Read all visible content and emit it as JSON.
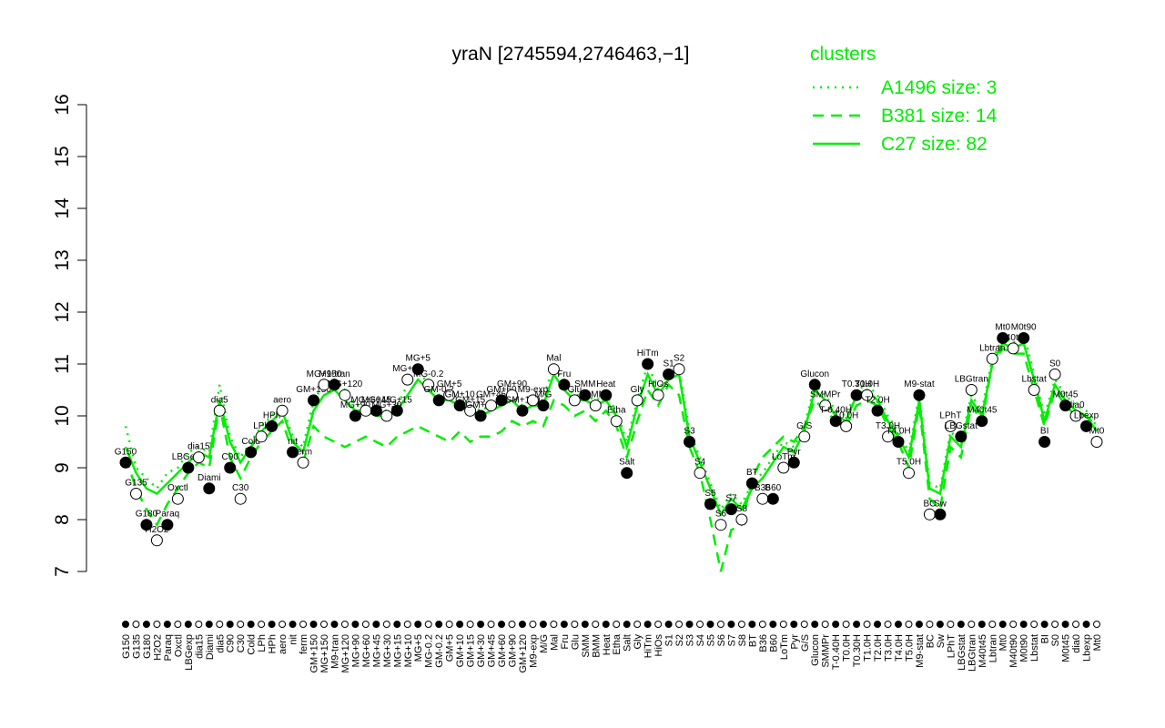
{
  "chart_data": {
    "type": "line",
    "title": "yraN [2745594,2746463,−1]",
    "legend_title": "clusters",
    "legend_position": "top-right",
    "ylim": [
      7,
      16
    ],
    "yticks": [
      7,
      8,
      9,
      10,
      11,
      12,
      13,
      14,
      15,
      16
    ],
    "categories": [
      "G150",
      "G135",
      "G180",
      "H2O2",
      "Paraq",
      "Oxctl",
      "LBGexp",
      "dia15",
      "Diami",
      "dia5",
      "C90",
      "C30",
      "Cold",
      "LPh",
      "HPh",
      "aero",
      "nit",
      "ferm",
      "GM+150",
      "MG+150",
      "M9-tran",
      "MG+120",
      "MG+90",
      "MG+60",
      "MG+45",
      "MG+30",
      "MG+15",
      "MG+10",
      "MG+5",
      "MG-0.2",
      "GM-0.2",
      "GM+5",
      "GM+10",
      "GM+15",
      "GM+30",
      "GM+45",
      "GM+60",
      "GM+90",
      "GM+120",
      "M9-exp",
      "M/G",
      "Mal",
      "Fru",
      "Glu",
      "SMM",
      "BMM",
      "Heat",
      "Etha",
      "Salt",
      "Gly",
      "HiTm",
      "HiOs",
      "S1",
      "S2",
      "S3",
      "S4",
      "S5",
      "S6",
      "S7",
      "S8",
      "BT",
      "B36",
      "B60",
      "LoTm",
      "Pyr",
      "G/S",
      "Glucon",
      "SMMPr",
      "T-0.40H",
      "T0.0H",
      "T0.30H",
      "T1.0H",
      "T2.0H",
      "T3.0H",
      "T4.0H",
      "T5.0H",
      "M9-stat",
      "BC",
      "Sw",
      "LPhT",
      "LBGstat",
      "LBGtran",
      "M40t45",
      "Lbtran",
      "Mt0",
      "M40t90",
      "M0t90",
      "Lbstat",
      "BI",
      "S0",
      "M0t45",
      "dia0",
      "Lbexp",
      "Mt0"
    ],
    "values": [
      9.1,
      8.5,
      7.9,
      7.6,
      7.9,
      8.4,
      9.0,
      9.2,
      8.6,
      10.1,
      9.0,
      8.4,
      9.3,
      9.6,
      9.8,
      10.1,
      9.3,
      9.1,
      10.3,
      10.6,
      10.6,
      10.4,
      10.0,
      10.1,
      10.1,
      10.0,
      10.1,
      10.7,
      10.9,
      10.6,
      10.3,
      10.4,
      10.2,
      10.1,
      10.0,
      10.2,
      10.3,
      10.4,
      10.1,
      10.3,
      10.2,
      10.9,
      10.6,
      10.3,
      10.4,
      10.2,
      10.4,
      9.9,
      8.9,
      10.3,
      11.0,
      10.4,
      10.8,
      10.9,
      9.5,
      8.9,
      8.3,
      7.9,
      8.2,
      8.0,
      8.7,
      8.4,
      8.4,
      9.0,
      9.1,
      9.6,
      10.6,
      10.2,
      9.9,
      9.8,
      10.4,
      10.4,
      10.1,
      9.6,
      9.5,
      8.9,
      10.4,
      8.1,
      8.1,
      9.8,
      9.6,
      10.5,
      9.9,
      11.1,
      11.5,
      11.3,
      11.5,
      10.5,
      9.5,
      10.8,
      10.2,
      10.0,
      9.8,
      9.5
    ],
    "series": [
      {
        "name": "A1496 size: 3",
        "color": "#00ee00",
        "style": "dotted",
        "values": [
          9.8,
          9.0,
          8.8,
          8.6,
          8.9,
          9.0,
          9.3,
          9.4,
          9.3,
          10.6,
          9.6,
          9.2,
          9.5,
          9.8,
          10.0,
          10.2,
          9.6,
          9.4,
          10.3,
          10.6,
          10.7,
          10.5,
          10.2,
          10.2,
          10.1,
          10.1,
          10.2,
          10.6,
          10.9,
          10.6,
          10.4,
          10.4,
          10.3,
          10.2,
          10.1,
          10.2,
          10.3,
          10.4,
          10.2,
          10.3,
          10.3,
          11.0,
          10.6,
          10.4,
          10.4,
          10.3,
          10.4,
          10.1,
          9.5,
          10.3,
          11.0,
          10.5,
          10.8,
          10.9,
          9.7,
          9.2,
          8.7,
          8.2,
          8.5,
          8.3,
          8.7,
          8.9,
          9.2,
          9.5,
          9.4,
          9.8,
          10.6,
          10.4,
          10.1,
          10.0,
          10.5,
          10.6,
          10.4,
          10.0,
          9.7,
          9.3,
          10.4,
          8.7,
          8.6,
          9.7,
          9.5,
          10.4,
          10.1,
          11.1,
          11.5,
          11.4,
          11.6,
          10.8,
          10.0,
          10.7,
          10.4,
          10.2,
          10.1,
          9.8
        ]
      },
      {
        "name": "B381 size: 14",
        "color": "#00ee00",
        "style": "dashed",
        "values": [
          9.2,
          8.6,
          8.2,
          7.9,
          8.3,
          8.6,
          8.9,
          9.1,
          9.0,
          10.2,
          9.2,
          8.8,
          9.2,
          9.5,
          9.7,
          9.9,
          9.3,
          9.1,
          9.8,
          9.6,
          9.5,
          9.4,
          9.5,
          9.6,
          9.5,
          9.4,
          9.6,
          9.7,
          9.8,
          9.7,
          9.6,
          9.5,
          9.7,
          9.5,
          9.6,
          9.6,
          9.7,
          9.9,
          9.8,
          9.9,
          9.8,
          10.3,
          10.2,
          10.0,
          10.1,
          9.9,
          10.1,
          9.8,
          9.2,
          9.9,
          10.5,
          10.2,
          10.6,
          10.4,
          9.4,
          8.9,
          8.0,
          7.0,
          7.8,
          7.9,
          8.8,
          9.2,
          9.4,
          9.6,
          9.5,
          9.8,
          10.3,
          10.1,
          9.9,
          9.8,
          10.2,
          10.3,
          10.2,
          9.8,
          9.5,
          9.0,
          10.2,
          8.4,
          8.2,
          9.4,
          9.2,
          10.2,
          9.9,
          11.0,
          11.3,
          11.2,
          11.2,
          10.5,
          9.8,
          10.5,
          10.2,
          10.0,
          10.0,
          9.8
        ]
      },
      {
        "name": "C27 size: 82",
        "color": "#00ee00",
        "style": "solid",
        "values": [
          9.4,
          8.9,
          8.6,
          8.5,
          8.7,
          8.9,
          9.1,
          9.3,
          9.2,
          10.3,
          9.5,
          9.1,
          9.4,
          9.7,
          9.9,
          10.1,
          9.5,
          9.3,
          10.1,
          10.4,
          10.5,
          10.3,
          10.1,
          10.1,
          10.0,
          10.0,
          10.1,
          10.4,
          10.7,
          10.5,
          10.3,
          10.3,
          10.2,
          10.1,
          10.0,
          10.1,
          10.2,
          10.3,
          10.1,
          10.2,
          10.2,
          10.8,
          10.5,
          10.3,
          10.3,
          10.2,
          10.3,
          10.0,
          9.4,
          10.2,
          10.8,
          10.4,
          10.7,
          10.8,
          9.6,
          9.1,
          8.6,
          8.1,
          8.4,
          8.2,
          8.6,
          8.8,
          9.1,
          9.4,
          9.3,
          9.7,
          10.5,
          10.3,
          10.0,
          9.9,
          10.4,
          10.5,
          10.3,
          9.9,
          9.6,
          9.2,
          10.3,
          8.6,
          8.5,
          9.6,
          9.4,
          10.3,
          10.0,
          11.0,
          11.4,
          11.3,
          11.4,
          10.7,
          9.9,
          10.6,
          10.3,
          10.1,
          10.0,
          9.7
        ]
      }
    ]
  }
}
